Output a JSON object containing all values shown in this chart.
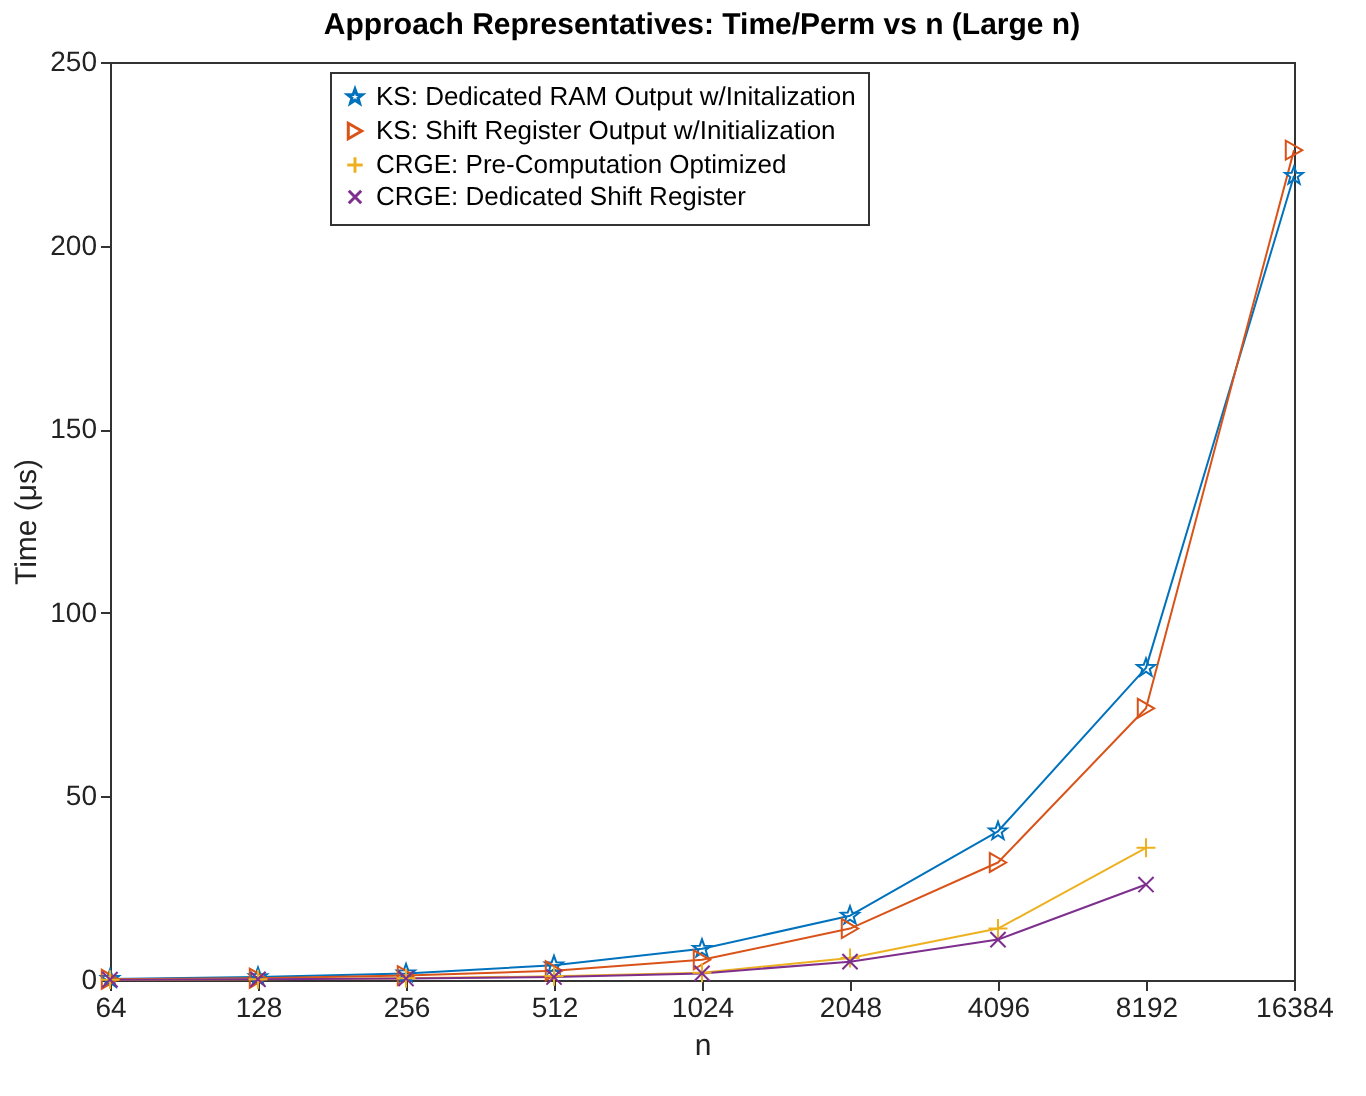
{
  "chart_data": {
    "type": "line",
    "title": "Approach Representatives: Time/Perm vs n (Large n)",
    "xlabel": "n",
    "ylabel": "Time (μs)",
    "x": [
      64,
      128,
      256,
      512,
      1024,
      2048,
      4096,
      8192,
      16384
    ],
    "series": [
      {
        "name": "KS: Dedicated RAM Output w/Initalization",
        "color": "#0072bd",
        "marker": "star",
        "values": [
          0.3,
          0.8,
          1.8,
          4,
          8.5,
          17.5,
          40.5,
          85,
          219
        ]
      },
      {
        "name": "KS: Shift Register Output w/Initialization",
        "color": "#d95319",
        "marker": "triangle",
        "values": [
          0.2,
          0.5,
          1.2,
          2.5,
          5.5,
          14,
          32,
          74,
          226
        ]
      },
      {
        "name": "CRGE: Pre-Computation Optimized",
        "color": "#edb120",
        "marker": "cross",
        "values": [
          0.1,
          0.2,
          0.5,
          1,
          2,
          6,
          14,
          36,
          null
        ]
      },
      {
        "name": "CRGE: Dedicated Shift Register",
        "color": "#7e2f8e",
        "marker": "x",
        "values": [
          0.1,
          0.2,
          0.4,
          0.8,
          1.8,
          5,
          11,
          26,
          null
        ]
      }
    ],
    "log": "x",
    "xlim": [
      64,
      16384
    ],
    "xticks": [
      64,
      128,
      256,
      512,
      1024,
      2048,
      4096,
      8192,
      16384
    ],
    "ylim": [
      0,
      250
    ],
    "yticks": [
      0,
      50,
      100,
      150,
      200,
      250
    ],
    "grid": false,
    "legend": "top",
    "line_style": "solid"
  }
}
